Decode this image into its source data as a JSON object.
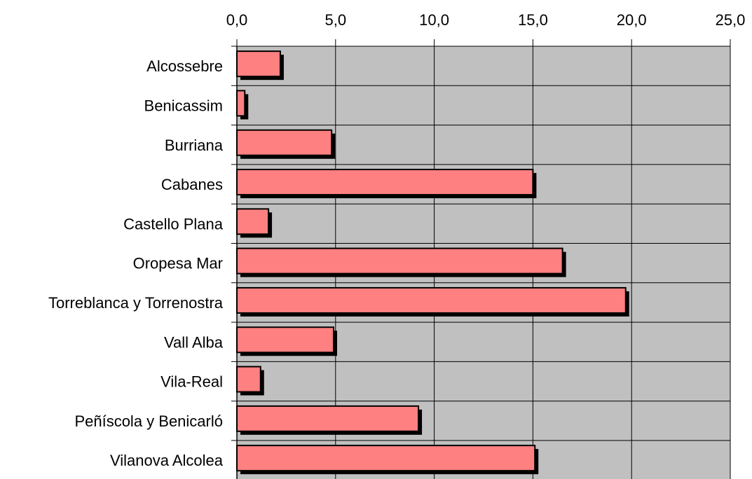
{
  "chart_data": {
    "type": "bar",
    "orientation": "horizontal",
    "categories": [
      "Alcossebre",
      "Benicassim",
      "Burriana",
      "Cabanes",
      "Castello Plana",
      "Oropesa Mar",
      "Torreblanca y Torrenostra",
      "Vall Alba",
      "Vila-Real",
      "Peñíscola y Benicarló",
      "Vilanova Alcolea"
    ],
    "values": [
      2.2,
      0.4,
      4.8,
      15.0,
      1.6,
      16.5,
      19.7,
      4.9,
      1.2,
      9.2,
      15.1
    ],
    "xlim": [
      0,
      25
    ],
    "x_ticks": [
      "0,0",
      "5,0",
      "10,0",
      "15,0",
      "20,0",
      "25,0"
    ],
    "x_axis_position": "top",
    "grid": true,
    "colors": {
      "bar_fill": "#FF8080",
      "bar_shadow": "#000000",
      "plot_background": "#C0C0C0",
      "axis": "#000000"
    }
  }
}
